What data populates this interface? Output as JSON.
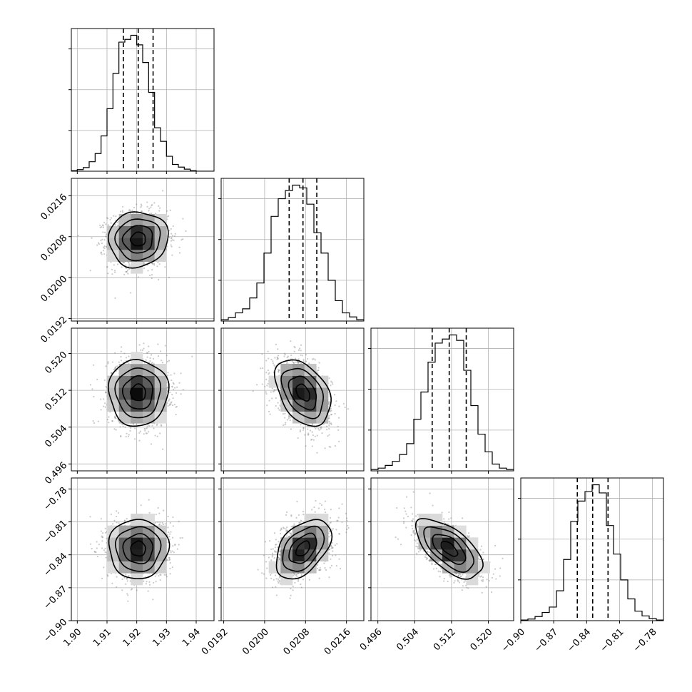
{
  "chart_data": {
    "type": "corner",
    "grid": true,
    "parameters": [
      {
        "range": [
          1.898,
          1.946
        ],
        "ticks": [
          1.9,
          1.91,
          1.92,
          1.93,
          1.94
        ],
        "tick_labels": [
          "1.90",
          "1.91",
          "1.92",
          "1.93",
          "1.94"
        ],
        "median": 1.9205,
        "sigma": 0.005,
        "quantiles": [
          1.9155,
          1.9205,
          1.9255
        ],
        "hist": [
          0.004,
          0.012,
          0.027,
          0.07,
          0.13,
          0.26,
          0.46,
          0.72,
          0.95,
          0.97,
          1.0,
          0.93,
          0.8,
          0.58,
          0.32,
          0.22,
          0.11,
          0.05,
          0.03,
          0.015,
          0.004,
          0,
          0,
          0
        ]
      },
      {
        "range": [
          0.01915,
          0.02194
        ],
        "ticks": [
          0.0192,
          0.02,
          0.0208,
          0.0216
        ],
        "tick_labels": [
          "0.0192",
          "0.0200",
          "0.0208",
          "0.0216"
        ],
        "median": 0.02075,
        "sigma": 0.00027,
        "quantiles": [
          0.02048,
          0.02075,
          0.02102
        ],
        "hist": [
          0.01,
          0.025,
          0.06,
          0.09,
          0.17,
          0.28,
          0.5,
          0.77,
          0.9,
          0.96,
          1.0,
          0.98,
          0.86,
          0.65,
          0.5,
          0.3,
          0.15,
          0.06,
          0.03,
          0.01
        ]
      },
      {
        "range": [
          0.4945,
          0.5255
        ],
        "ticks": [
          0.496,
          0.504,
          0.512,
          0.52
        ],
        "tick_labels": [
          "0.496",
          "0.504",
          "0.512",
          "0.520"
        ],
        "median": 0.5115,
        "sigma": 0.0036,
        "quantiles": [
          0.5078,
          0.5115,
          0.5152
        ],
        "hist": [
          0.01,
          0.02,
          0.04,
          0.07,
          0.12,
          0.2,
          0.38,
          0.58,
          0.8,
          0.94,
          0.97,
          1.0,
          0.96,
          0.74,
          0.48,
          0.27,
          0.14,
          0.05,
          0.02,
          0.01
        ]
      },
      {
        "range": [
          -0.9,
          -0.77
        ],
        "ticks": [
          -0.9,
          -0.87,
          -0.84,
          -0.81,
          -0.78
        ],
        "tick_labels": [
          "−0.90",
          "−0.87",
          "−0.84",
          "−0.81",
          "−0.78"
        ],
        "median": -0.8345,
        "sigma": 0.0135,
        "quantiles": [
          -0.8485,
          -0.8345,
          -0.8205
        ],
        "hist": [
          0.005,
          0.012,
          0.03,
          0.06,
          0.1,
          0.22,
          0.45,
          0.73,
          0.88,
          0.95,
          1.0,
          0.94,
          0.7,
          0.49,
          0.3,
          0.16,
          0.07,
          0.035,
          0.015,
          0.005
        ]
      }
    ],
    "correlations": [
      [
        1.0,
        0.05,
        0.0,
        0.0
      ],
      [
        0.05,
        1.0,
        -0.4,
        0.45
      ],
      [
        0.0,
        -0.4,
        1.0,
        -0.62
      ],
      [
        0.0,
        0.45,
        -0.62,
        1.0
      ]
    ],
    "contour_levels_sigma": [
      0.5,
      1.0,
      1.5,
      2.0
    ],
    "scatter_points_per_panel": 1500
  }
}
